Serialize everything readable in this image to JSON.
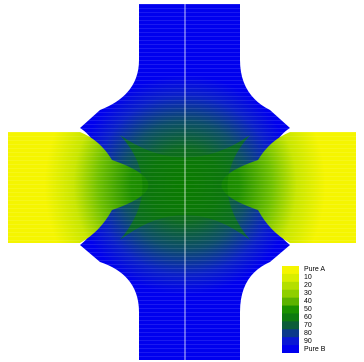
{
  "legend": {
    "labels": [
      "Pure A",
      "10",
      "20",
      "30",
      "40",
      "50",
      "60",
      "70",
      "80",
      "90",
      "Pure B"
    ],
    "colors": [
      "#f5f500",
      "#d9ee00",
      "#b4df00",
      "#8fcf00",
      "#5cb300",
      "#1a9100",
      "#0d7a10",
      "#0c5c3a",
      "#0b3a8a",
      "#0a18d4",
      "#0000ee"
    ]
  },
  "colors": {
    "pure_a": "#f5f500",
    "pure_b": "#0000ee",
    "center": "#0a7a00",
    "background": "#ffffff"
  }
}
